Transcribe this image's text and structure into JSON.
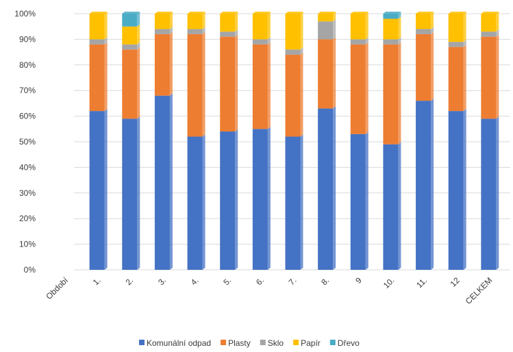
{
  "chart_data": {
    "type": "bar",
    "stacked": true,
    "percent_stacked": true,
    "categories": [
      "Období",
      "1.",
      "2.",
      "3.",
      "4.",
      "5.",
      "6.",
      "7.",
      "8.",
      "9",
      "10.",
      "11.",
      "12",
      "CELKEM"
    ],
    "series": [
      {
        "name": "Komunální odpad",
        "color": "#4472C4",
        "values": [
          0,
          62,
          59,
          68,
          52,
          54,
          55,
          52,
          63,
          53,
          49,
          66,
          62,
          59
        ]
      },
      {
        "name": "Plasty",
        "color": "#ED7D31",
        "values": [
          0,
          26,
          27,
          24,
          40,
          37,
          33,
          32,
          27,
          35,
          39,
          26,
          25,
          32
        ]
      },
      {
        "name": "Sklo",
        "color": "#A5A5A5",
        "values": [
          0,
          2,
          2,
          2,
          2,
          2,
          2,
          2,
          7,
          2,
          2,
          2,
          2,
          2
        ]
      },
      {
        "name": "Papír",
        "color": "#FFC000",
        "values": [
          0,
          10,
          7,
          6,
          6,
          7,
          10,
          14,
          3,
          10,
          8,
          6,
          11,
          7
        ]
      },
      {
        "name": "Dřevo",
        "color": "#4BACC6",
        "values": [
          0,
          0,
          5,
          0,
          0,
          0,
          0,
          0,
          0,
          0,
          2,
          0,
          0,
          0
        ]
      }
    ],
    "yticks": [
      "0%",
      "10%",
      "20%",
      "30%",
      "40%",
      "50%",
      "60%",
      "70%",
      "80%",
      "90%",
      "100%"
    ],
    "ylim": [
      0,
      100
    ],
    "grid": true,
    "legend_position": "bottom"
  }
}
